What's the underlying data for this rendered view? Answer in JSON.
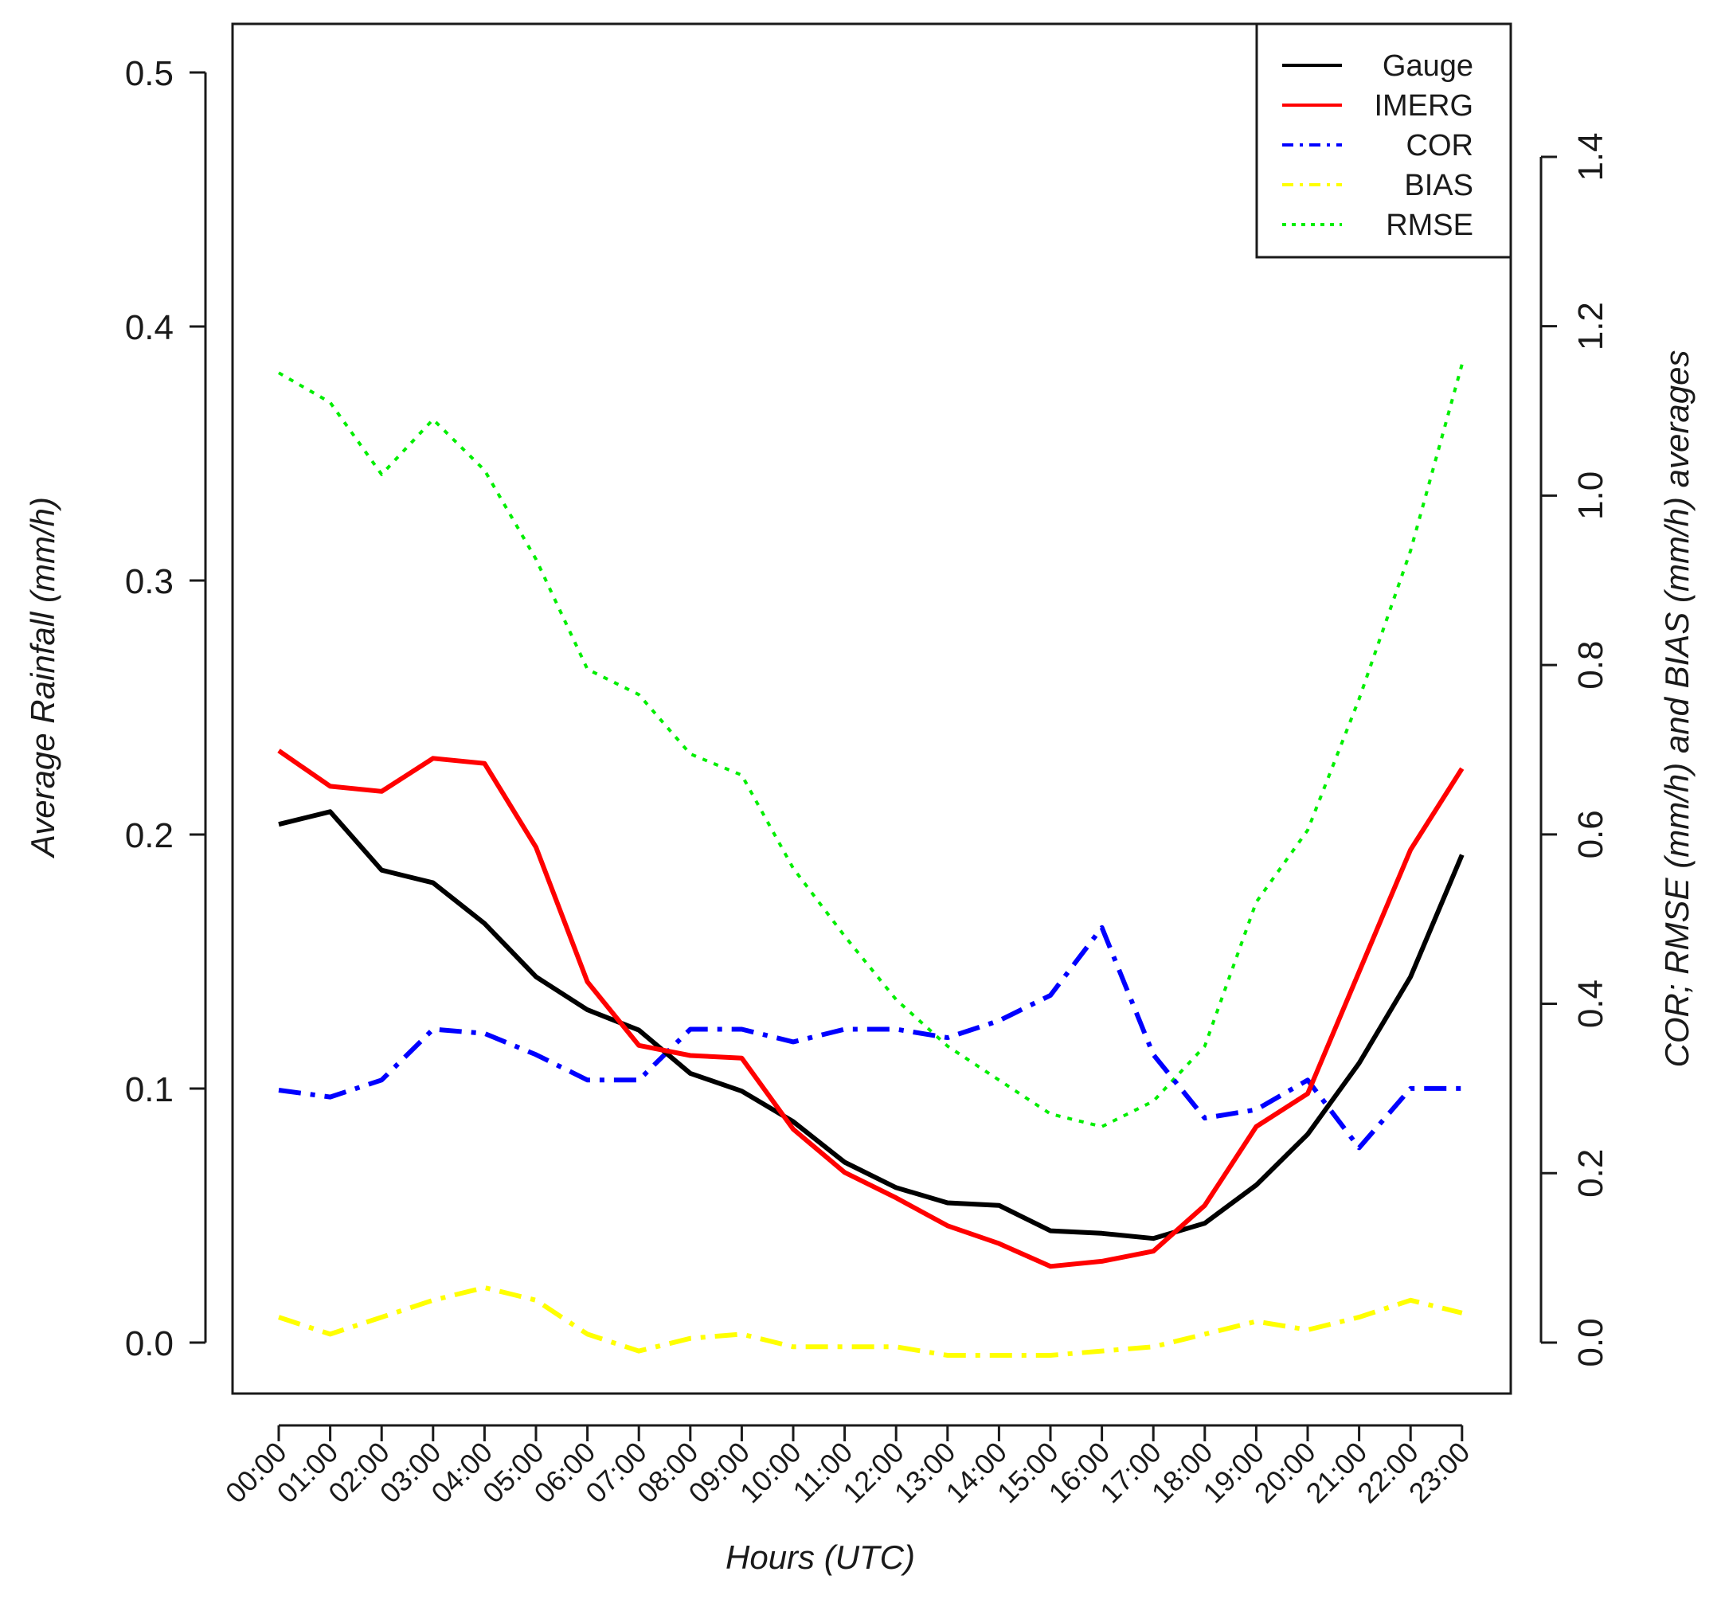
{
  "chart_data": {
    "type": "line",
    "xlabel": "Hours (UTC)",
    "ylabel_left": "Average Rainfall (mm/h)",
    "ylabel_right": "COR; RMSE (mm/h) and BIAS (mm/h) averages",
    "categories": [
      "00:00",
      "01:00",
      "02:00",
      "03:00",
      "04:00",
      "05:00",
      "06:00",
      "07:00",
      "08:00",
      "09:00",
      "10:00",
      "11:00",
      "12:00",
      "13:00",
      "14:00",
      "15:00",
      "16:00",
      "17:00",
      "18:00",
      "19:00",
      "20:00",
      "21:00",
      "22:00",
      "23:00"
    ],
    "left_axis": {
      "ylim": [
        0,
        0.5
      ],
      "ticks": [
        0.0,
        0.1,
        0.2,
        0.3,
        0.4,
        0.5
      ],
      "tick_labels": [
        "0.0",
        "0.1",
        "0.2",
        "0.3",
        "0.4",
        "0.5"
      ]
    },
    "right_axis": {
      "ylim": [
        0,
        1.4
      ],
      "ticks": [
        0.0,
        0.2,
        0.4,
        0.6,
        0.8,
        1.0,
        1.2,
        1.4
      ],
      "tick_labels": [
        "0.0",
        "0.2",
        "0.4",
        "0.6",
        "0.8",
        "1.0",
        "1.2",
        "1.4"
      ]
    },
    "series": [
      {
        "name": "Gauge",
        "axis": "left",
        "color": "#000000",
        "style": "solid",
        "values": [
          0.204,
          0.209,
          0.186,
          0.181,
          0.165,
          0.144,
          0.131,
          0.123,
          0.106,
          0.099,
          0.087,
          0.071,
          0.061,
          0.055,
          0.054,
          0.044,
          0.043,
          0.041,
          0.047,
          0.062,
          0.082,
          0.11,
          0.144,
          0.192
        ]
      },
      {
        "name": "IMERG",
        "axis": "left",
        "color": "#ff0000",
        "style": "solid",
        "values": [
          0.233,
          0.219,
          0.217,
          0.23,
          0.228,
          0.195,
          0.142,
          0.117,
          0.113,
          0.112,
          0.084,
          0.067,
          0.057,
          0.046,
          0.039,
          0.03,
          0.032,
          0.036,
          0.054,
          0.085,
          0.098,
          0.146,
          0.194,
          0.226
        ]
      },
      {
        "name": "COR",
        "axis": "right",
        "color": "#0000ff",
        "style": "dashdot",
        "values": [
          0.298,
          0.29,
          0.31,
          0.37,
          0.365,
          0.34,
          0.31,
          0.31,
          0.37,
          0.37,
          0.355,
          0.37,
          0.37,
          0.36,
          0.38,
          0.41,
          0.49,
          0.34,
          0.265,
          0.275,
          0.31,
          0.23,
          0.3,
          0.3
        ]
      },
      {
        "name": "BIAS",
        "axis": "right",
        "color": "#ffff00",
        "style": "dashdot",
        "values": [
          0.03,
          0.01,
          0.03,
          0.05,
          0.065,
          0.05,
          0.01,
          -0.01,
          0.005,
          0.01,
          -0.005,
          -0.005,
          -0.005,
          -0.015,
          -0.015,
          -0.015,
          -0.01,
          -0.005,
          0.01,
          0.025,
          0.015,
          0.03,
          0.05,
          0.035
        ]
      },
      {
        "name": "RMSE",
        "axis": "right",
        "color": "#00ee00",
        "style": "dotted",
        "values": [
          1.145,
          1.11,
          1.025,
          1.09,
          1.03,
          0.925,
          0.795,
          0.765,
          0.695,
          0.67,
          0.56,
          0.48,
          0.405,
          0.35,
          0.31,
          0.27,
          0.255,
          0.285,
          0.35,
          0.52,
          0.605,
          0.76,
          0.935,
          1.155
        ]
      }
    ],
    "legend": {
      "position": "top-right",
      "entries": [
        "Gauge",
        "IMERG",
        "COR",
        "BIAS",
        "RMSE"
      ]
    }
  }
}
